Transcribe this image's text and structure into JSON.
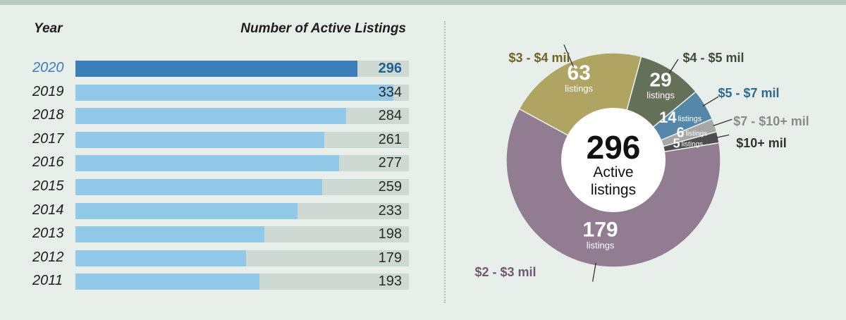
{
  "bar_header": {
    "year": "Year",
    "count": "Number of Active Listings"
  },
  "donut_center": {
    "total": "296",
    "line1": "Active",
    "line2": "listings"
  },
  "colors": {
    "bar_fill": "#92c8e8",
    "bar_fill_highlight": "#3a7fb9",
    "bar_track": "#cdd9d2"
  },
  "chart_data": [
    {
      "type": "bar",
      "orientation": "horizontal",
      "categories": [
        "2020",
        "2019",
        "2018",
        "2017",
        "2016",
        "2015",
        "2014",
        "2013",
        "2012",
        "2011"
      ],
      "values": [
        296,
        334,
        284,
        261,
        277,
        259,
        233,
        198,
        179,
        193
      ],
      "highlight": "2020",
      "xlim": [
        0,
        350
      ]
    },
    {
      "type": "pie",
      "variant": "donut",
      "slices": [
        {
          "range": "$3 - $4 mil",
          "value": 63,
          "unit": "listings",
          "color": "#b0a463",
          "label_color": "#6e6426"
        },
        {
          "range": "$4 - $5 mil",
          "value": 29,
          "unit": "listings",
          "color": "#647058",
          "label_color": "#3f4a37"
        },
        {
          "range": "$5 - $7 mil",
          "value": 14,
          "unit": "listings",
          "color": "#5588a8",
          "label_color": "#2f6a8c"
        },
        {
          "range": "$7 - $10+ mil",
          "value": 6,
          "unit": "listings",
          "color": "#a7a7a7",
          "label_color": "#8a8a8a"
        },
        {
          "range": "$10+ mil",
          "value": 5,
          "unit": "listings",
          "color": "#4e4e4e",
          "label_color": "#333333"
        },
        {
          "range": "$2 - $3 mil",
          "value": 179,
          "unit": "listings",
          "color": "#917c92",
          "label_color": "#6e5a71"
        }
      ]
    }
  ]
}
